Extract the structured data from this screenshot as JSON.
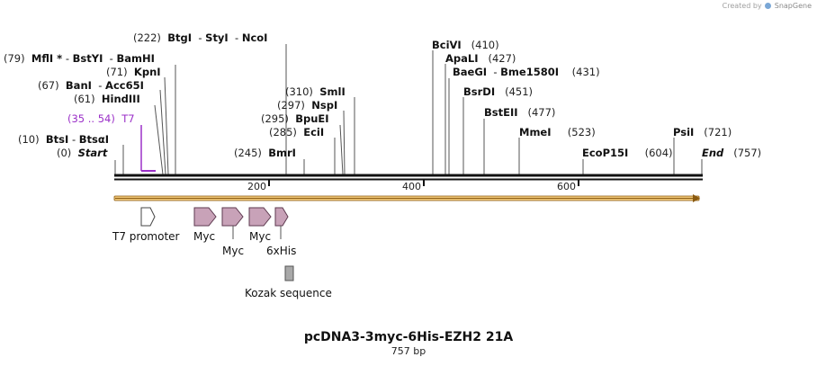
{
  "brand": {
    "created_by": "Created by",
    "app": "SnapGene"
  },
  "plasmid": {
    "name": "pcDNA3-3myc-6His-EZH2 21A",
    "size_label": "757 bp",
    "length": 757
  },
  "ruler": {
    "ticks": [
      {
        "value": 200,
        "label": "200"
      },
      {
        "value": 400,
        "label": "400"
      },
      {
        "value": 600,
        "label": "600"
      }
    ]
  },
  "sites": [
    {
      "id": "bts",
      "pos": "(10)",
      "name": "BtsI",
      "name2": "BtsαI",
      "bp": 10
    },
    {
      "id": "start",
      "pos": "(0)",
      "name": "Start",
      "bp": 0
    },
    {
      "id": "mfl",
      "pos": "(79)",
      "name": "MflI *",
      "name2": "BstYI",
      "name3": "BamHI",
      "bp": 79
    },
    {
      "id": "kpn",
      "pos": "(71)",
      "name": "KpnI",
      "bp": 71
    },
    {
      "id": "ban",
      "pos": "(67)",
      "name": "BanI",
      "name2": "Acc65I",
      "bp": 67
    },
    {
      "id": "hind",
      "pos": "(61)",
      "name": "HindIII",
      "bp": 61
    },
    {
      "id": "btg",
      "pos": "(222)",
      "name": "BtgI",
      "name2": "StyI",
      "name3": "NcoI",
      "bp": 222
    },
    {
      "id": "sml",
      "pos": "(310)",
      "name": "SmlI",
      "bp": 310
    },
    {
      "id": "nsp",
      "pos": "(297)",
      "name": "NspI",
      "bp": 297
    },
    {
      "id": "bpue",
      "pos": "(295)",
      "name": "BpuEI",
      "bp": 295
    },
    {
      "id": "eci",
      "pos": "(285)",
      "name": "EciI",
      "bp": 285
    },
    {
      "id": "bmr",
      "pos": "(245)",
      "name": "BmrI",
      "bp": 245
    },
    {
      "id": "bci",
      "pos": "(410)",
      "name": "BciVI",
      "bp": 410
    },
    {
      "id": "apa",
      "pos": "(427)",
      "name": "ApaLI",
      "bp": 427
    },
    {
      "id": "bae",
      "pos": "(431)",
      "name": "BaeGI",
      "name2": "Bme1580I",
      "bp": 431
    },
    {
      "id": "bsr",
      "pos": "(451)",
      "name": "BsrDI",
      "bp": 451
    },
    {
      "id": "bste",
      "pos": "(477)",
      "name": "BstEII",
      "bp": 477
    },
    {
      "id": "mme",
      "pos": "(523)",
      "name": "MmeI",
      "bp": 523
    },
    {
      "id": "ecop",
      "pos": "(604)",
      "name": "EcoP15I",
      "bp": 604
    },
    {
      "id": "psi",
      "pos": "(721)",
      "name": "PsiI",
      "bp": 721
    },
    {
      "id": "end",
      "pos": "(757)",
      "name": "End",
      "bp": 757
    }
  ],
  "primer": {
    "range": "(35 .. 54)",
    "name": "T7",
    "color": "#9b30c8"
  },
  "features": [
    {
      "id": "t7p",
      "label": "T7 promoter",
      "kind": "promoter"
    },
    {
      "id": "myc1",
      "label": "Myc",
      "kind": "tag"
    },
    {
      "id": "myc2",
      "label": "Myc",
      "kind": "tag"
    },
    {
      "id": "myc3",
      "label": "Myc",
      "kind": "tag"
    },
    {
      "id": "his",
      "label": "6xHis",
      "kind": "tag"
    },
    {
      "id": "kozak",
      "label": "Kozak sequence",
      "kind": "misc"
    }
  ],
  "colors": {
    "tag_fill": "#c8a2b8",
    "tag_stroke": "#5e3a50",
    "orf_fill": "#f0c878",
    "orf_stroke": "#8a5a10"
  }
}
